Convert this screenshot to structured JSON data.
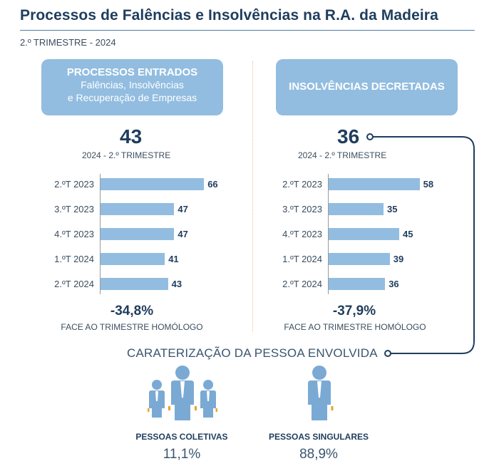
{
  "title": "Processos de Falências e Insolvências na R.A. da Madeira",
  "subtitle": "2.º TRIMESTRE - 2024",
  "left_panel": {
    "header_main": "PROCESSOS ENTRADOS",
    "header_sub1": "Falências, Insolvências",
    "header_sub2": "e Recuperação de Empresas",
    "big_number": "43",
    "big_label": "2024 - 2.º TRIMESTRE",
    "change": "-34,8%",
    "change_label": "FACE AO TRIMESTRE HOMÓLOGO"
  },
  "right_panel": {
    "header_main": "INSOLVÊNCIAS DECRETADAS",
    "big_number": "36",
    "big_label": "2024 - 2.º TRIMESTRE",
    "change": "-37,9%",
    "change_label": "FACE AO TRIMESTRE HOMÓLOGO"
  },
  "chart_data": [
    {
      "type": "bar",
      "orientation": "horizontal",
      "categories": [
        "2.ºT 2023",
        "3.ºT 2023",
        "4.ºT 2023",
        "1.ºT 2024",
        "2.ºT 2024"
      ],
      "values": [
        66,
        47,
        47,
        41,
        43
      ],
      "data_labels": [
        "66",
        "47",
        "47",
        "41",
        "43"
      ]
    },
    {
      "type": "bar",
      "orientation": "horizontal",
      "categories": [
        "2.ºT 2023",
        "3.ºT 2023",
        "4.ºT 2023",
        "1.ºT 2024",
        "2.ºT 2024"
      ],
      "values": [
        58,
        35,
        45,
        39,
        36
      ],
      "data_labels": [
        "58",
        "35",
        "45",
        "39",
        "36"
      ]
    }
  ],
  "characterization": {
    "title": "CARATERIZAÇÃO DA PESSOA ENVOLVIDA",
    "collective_label": "PESSOAS COLETIVAS",
    "collective_pct": "11,1%",
    "collective_icon": "group-of-people-icon",
    "singular_label": "PESSOAS SINGULARES",
    "singular_pct": "88,9%",
    "singular_icon": "single-person-icon"
  },
  "colors": {
    "bar": "#92bde0",
    "dark_blue": "#1f3d5e",
    "header_box": "#92bde0"
  }
}
